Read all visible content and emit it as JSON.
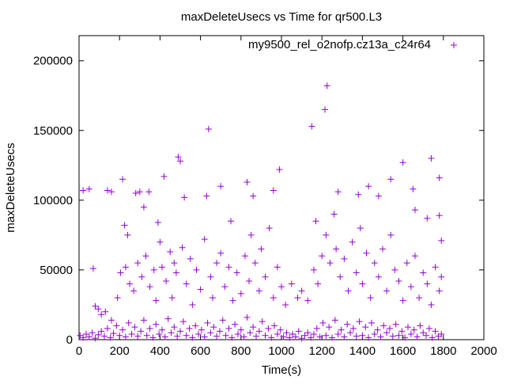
{
  "chart_data": {
    "type": "scatter",
    "title": "maxDeleteUsecs vs Time for qr500.L3",
    "xlabel": "Time(s)",
    "ylabel": "maxDeleteUsecs",
    "xlim": [
      0,
      2000
    ],
    "ylim": [
      0,
      218000
    ],
    "xticks": [
      0,
      200,
      400,
      600,
      800,
      1000,
      1200,
      1400,
      1600,
      1800,
      2000
    ],
    "yticks": [
      0,
      50000,
      100000,
      150000,
      200000
    ],
    "grid": false,
    "legend_position": "top-right",
    "series": [
      {
        "name": "my9500_rel_o2nofp.cz13a_c24r64",
        "color": "#9400D3",
        "points": [
          [
            20,
            107000
          ],
          [
            50,
            108000
          ],
          [
            70,
            51000
          ],
          [
            140,
            107000
          ],
          [
            160,
            106000
          ],
          [
            215,
            115000
          ],
          [
            225,
            82000
          ],
          [
            240,
            75000
          ],
          [
            280,
            105000
          ],
          [
            300,
            106000
          ],
          [
            320,
            95000
          ],
          [
            345,
            106000
          ],
          [
            390,
            84000
          ],
          [
            420,
            117000
          ],
          [
            490,
            131000
          ],
          [
            500,
            128000
          ],
          [
            520,
            102000
          ],
          [
            640,
            151000
          ],
          [
            630,
            103000
          ],
          [
            700,
            110000
          ],
          [
            750,
            85000
          ],
          [
            830,
            113000
          ],
          [
            860,
            103000
          ],
          [
            960,
            107000
          ],
          [
            990,
            122000
          ],
          [
            1150,
            153000
          ],
          [
            1170,
            85000
          ],
          [
            1215,
            165000
          ],
          [
            1225,
            182000
          ],
          [
            1280,
            106000
          ],
          [
            1380,
            104000
          ],
          [
            1430,
            110000
          ],
          [
            1480,
            103000
          ],
          [
            1540,
            115000
          ],
          [
            1600,
            127000
          ],
          [
            1650,
            108000
          ],
          [
            1660,
            93000
          ],
          [
            1720,
            87000
          ],
          [
            1740,
            130000
          ],
          [
            1780,
            116000
          ],
          [
            1780,
            89000
          ],
          [
            1790,
            71000
          ],
          [
            80,
            24000
          ],
          [
            95,
            22000
          ],
          [
            110,
            18000
          ],
          [
            130,
            20000
          ],
          [
            160,
            14000
          ],
          [
            190,
            30000
          ],
          [
            205,
            48000
          ],
          [
            230,
            52000
          ],
          [
            250,
            40000
          ],
          [
            270,
            35000
          ],
          [
            290,
            55000
          ],
          [
            310,
            45000
          ],
          [
            330,
            60000
          ],
          [
            350,
            38000
          ],
          [
            370,
            50000
          ],
          [
            380,
            28000
          ],
          [
            400,
            70000
          ],
          [
            410,
            52000
          ],
          [
            430,
            42000
          ],
          [
            450,
            63000
          ],
          [
            460,
            30000
          ],
          [
            470,
            55000
          ],
          [
            480,
            48000
          ],
          [
            510,
            66000
          ],
          [
            530,
            40000
          ],
          [
            550,
            58000
          ],
          [
            560,
            25000
          ],
          [
            580,
            50000
          ],
          [
            600,
            36000
          ],
          [
            620,
            72000
          ],
          [
            650,
            45000
          ],
          [
            660,
            30000
          ],
          [
            680,
            55000
          ],
          [
            700,
            62000
          ],
          [
            720,
            38000
          ],
          [
            740,
            52000
          ],
          [
            760,
            28000
          ],
          [
            780,
            48000
          ],
          [
            800,
            33000
          ],
          [
            820,
            60000
          ],
          [
            840,
            42000
          ],
          [
            850,
            75000
          ],
          [
            870,
            55000
          ],
          [
            890,
            35000
          ],
          [
            900,
            65000
          ],
          [
            920,
            45000
          ],
          [
            940,
            80000
          ],
          [
            960,
            30000
          ],
          [
            980,
            52000
          ],
          [
            1000,
            38000
          ],
          [
            1020,
            25000
          ],
          [
            1050,
            40000
          ],
          [
            1080,
            30000
          ],
          [
            1100,
            35000
          ],
          [
            1130,
            28000
          ],
          [
            1160,
            50000
          ],
          [
            1180,
            40000
          ],
          [
            1200,
            60000
          ],
          [
            1220,
            75000
          ],
          [
            1240,
            55000
          ],
          [
            1260,
            90000
          ],
          [
            1270,
            65000
          ],
          [
            1290,
            45000
          ],
          [
            1310,
            58000
          ],
          [
            1330,
            35000
          ],
          [
            1350,
            70000
          ],
          [
            1370,
            48000
          ],
          [
            1390,
            80000
          ],
          [
            1400,
            40000
          ],
          [
            1420,
            62000
          ],
          [
            1440,
            30000
          ],
          [
            1460,
            55000
          ],
          [
            1480,
            45000
          ],
          [
            1500,
            65000
          ],
          [
            1520,
            35000
          ],
          [
            1540,
            75000
          ],
          [
            1560,
            50000
          ],
          [
            1580,
            42000
          ],
          [
            1600,
            28000
          ],
          [
            1620,
            55000
          ],
          [
            1640,
            38000
          ],
          [
            1660,
            60000
          ],
          [
            1680,
            30000
          ],
          [
            1700,
            48000
          ],
          [
            1720,
            40000
          ],
          [
            1740,
            25000
          ],
          [
            1760,
            52000
          ],
          [
            1780,
            35000
          ],
          [
            1790,
            45000
          ],
          [
            5,
            3000
          ],
          [
            20,
            1500
          ],
          [
            35,
            4000
          ],
          [
            50,
            2000
          ],
          [
            65,
            5000
          ],
          [
            80,
            1000
          ],
          [
            95,
            3500
          ],
          [
            110,
            6000
          ],
          [
            125,
            2500
          ],
          [
            140,
            8000
          ],
          [
            155,
            1500
          ],
          [
            170,
            4500
          ],
          [
            185,
            10000
          ],
          [
            200,
            3000
          ],
          [
            215,
            7000
          ],
          [
            230,
            2000
          ],
          [
            245,
            12000
          ],
          [
            260,
            4000
          ],
          [
            275,
            9000
          ],
          [
            290,
            2500
          ],
          [
            305,
            6000
          ],
          [
            320,
            14000
          ],
          [
            335,
            3000
          ],
          [
            350,
            8000
          ],
          [
            365,
            1500
          ],
          [
            380,
            11000
          ],
          [
            395,
            4000
          ],
          [
            410,
            7000
          ],
          [
            425,
            2000
          ],
          [
            440,
            15000
          ],
          [
            455,
            5000
          ],
          [
            470,
            9000
          ],
          [
            485,
            2500
          ],
          [
            500,
            6000
          ],
          [
            515,
            13000
          ],
          [
            530,
            3000
          ],
          [
            545,
            8000
          ],
          [
            560,
            1500
          ],
          [
            575,
            10000
          ],
          [
            590,
            4000
          ],
          [
            605,
            7000
          ],
          [
            620,
            2000
          ],
          [
            635,
            12000
          ],
          [
            650,
            5000
          ],
          [
            665,
            9000
          ],
          [
            680,
            2500
          ],
          [
            695,
            6000
          ],
          [
            710,
            14000
          ],
          [
            725,
            3000
          ],
          [
            740,
            8000
          ],
          [
            755,
            1500
          ],
          [
            770,
            11000
          ],
          [
            785,
            4000
          ],
          [
            800,
            7000
          ],
          [
            815,
            2000
          ],
          [
            830,
            16000
          ],
          [
            845,
            5000
          ],
          [
            860,
            9000
          ],
          [
            875,
            2500
          ],
          [
            890,
            6000
          ],
          [
            905,
            13000
          ],
          [
            920,
            3000
          ],
          [
            935,
            8000
          ],
          [
            950,
            1500
          ],
          [
            965,
            10000
          ],
          [
            980,
            4000
          ],
          [
            995,
            7000
          ],
          [
            1010,
            2000
          ],
          [
            1025,
            5000
          ],
          [
            1040,
            1500
          ],
          [
            1055,
            4000
          ],
          [
            1070,
            2000
          ],
          [
            1085,
            6000
          ],
          [
            1100,
            1000
          ],
          [
            1115,
            3000
          ],
          [
            1130,
            5000
          ],
          [
            1145,
            1500
          ],
          [
            1160,
            4000
          ],
          [
            1175,
            8000
          ],
          [
            1190,
            2000
          ],
          [
            1205,
            12000
          ],
          [
            1220,
            3000
          ],
          [
            1235,
            9000
          ],
          [
            1250,
            1500
          ],
          [
            1265,
            14000
          ],
          [
            1280,
            4000
          ],
          [
            1295,
            7000
          ],
          [
            1310,
            2000
          ],
          [
            1325,
            11000
          ],
          [
            1340,
            5000
          ],
          [
            1355,
            8000
          ],
          [
            1370,
            2500
          ],
          [
            1385,
            13000
          ],
          [
            1400,
            3000
          ],
          [
            1415,
            9000
          ],
          [
            1430,
            1500
          ],
          [
            1445,
            12000
          ],
          [
            1460,
            4000
          ],
          [
            1475,
            7000
          ],
          [
            1490,
            2000
          ],
          [
            1505,
            10000
          ],
          [
            1520,
            5000
          ],
          [
            1535,
            8000
          ],
          [
            1550,
            2500
          ],
          [
            1565,
            11000
          ],
          [
            1580,
            3000
          ],
          [
            1595,
            6000
          ],
          [
            1610,
            1500
          ],
          [
            1625,
            9000
          ],
          [
            1640,
            4000
          ],
          [
            1655,
            7000
          ],
          [
            1670,
            2000
          ],
          [
            1685,
            10000
          ],
          [
            1700,
            5000
          ],
          [
            1715,
            3000
          ],
          [
            1730,
            8000
          ],
          [
            1745,
            1500
          ],
          [
            1760,
            6000
          ],
          [
            1775,
            2500
          ],
          [
            1790,
            4000
          ]
        ]
      }
    ]
  }
}
